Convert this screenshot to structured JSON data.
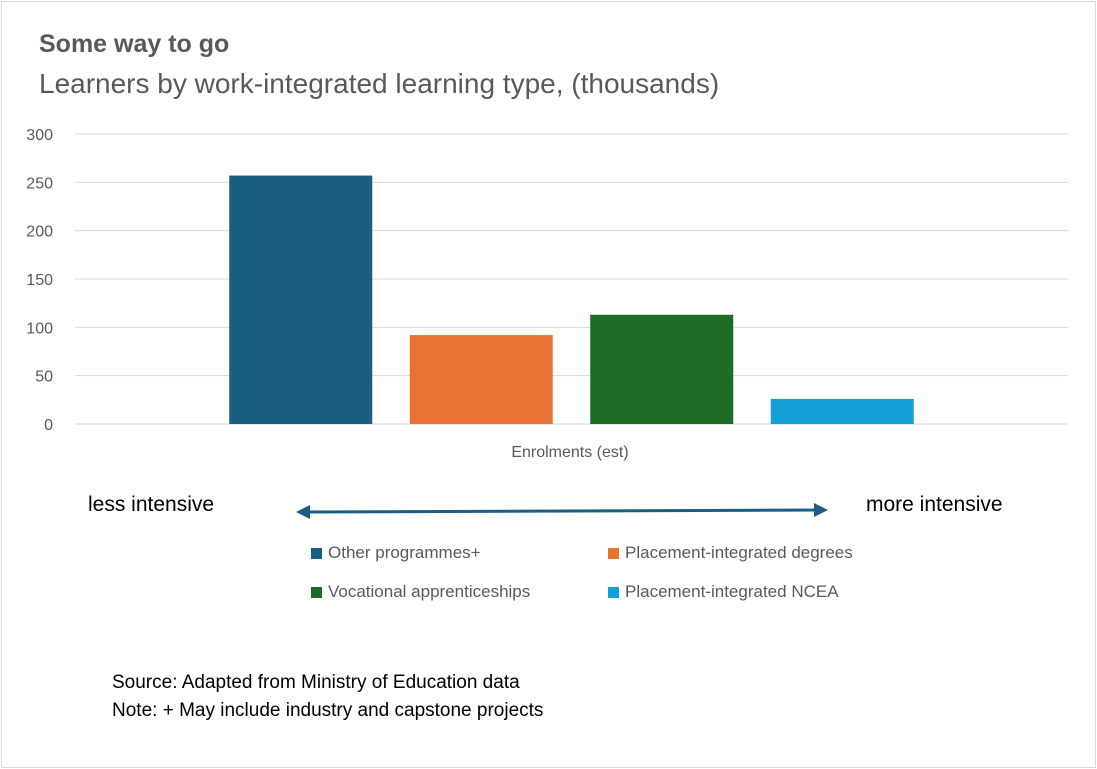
{
  "chart_data": {
    "type": "bar",
    "title": "Some way to go",
    "subtitle": "Learners by work-integrated learning type, (thousands)",
    "xlabel": "Enrolments (est)",
    "ylabel": "",
    "ylim": [
      0,
      300
    ],
    "yticks": [
      0,
      50,
      100,
      150,
      200,
      250,
      300
    ],
    "grid": true,
    "legend_position": "bottom",
    "categories": [
      "Enrolments (est)"
    ],
    "series": [
      {
        "name": "Other programmes+",
        "values": [
          257
        ],
        "color": "#1a5e82"
      },
      {
        "name": "Placement-integrated degrees",
        "values": [
          92
        ],
        "color": "#e97132"
      },
      {
        "name": "Vocational apprenticeships",
        "values": [
          113
        ],
        "color": "#1e6b26"
      },
      {
        "name": "Placement-integrated NCEA",
        "values": [
          26
        ],
        "color": "#13a0d6"
      }
    ]
  },
  "annotations": {
    "left_label": "less intensive",
    "right_label": "more intensive",
    "arrow_color": "#1a5e82"
  },
  "notes": {
    "source": "Source: Adapted from Ministry of Education data",
    "note": "Note: + May include industry and capstone projects"
  }
}
